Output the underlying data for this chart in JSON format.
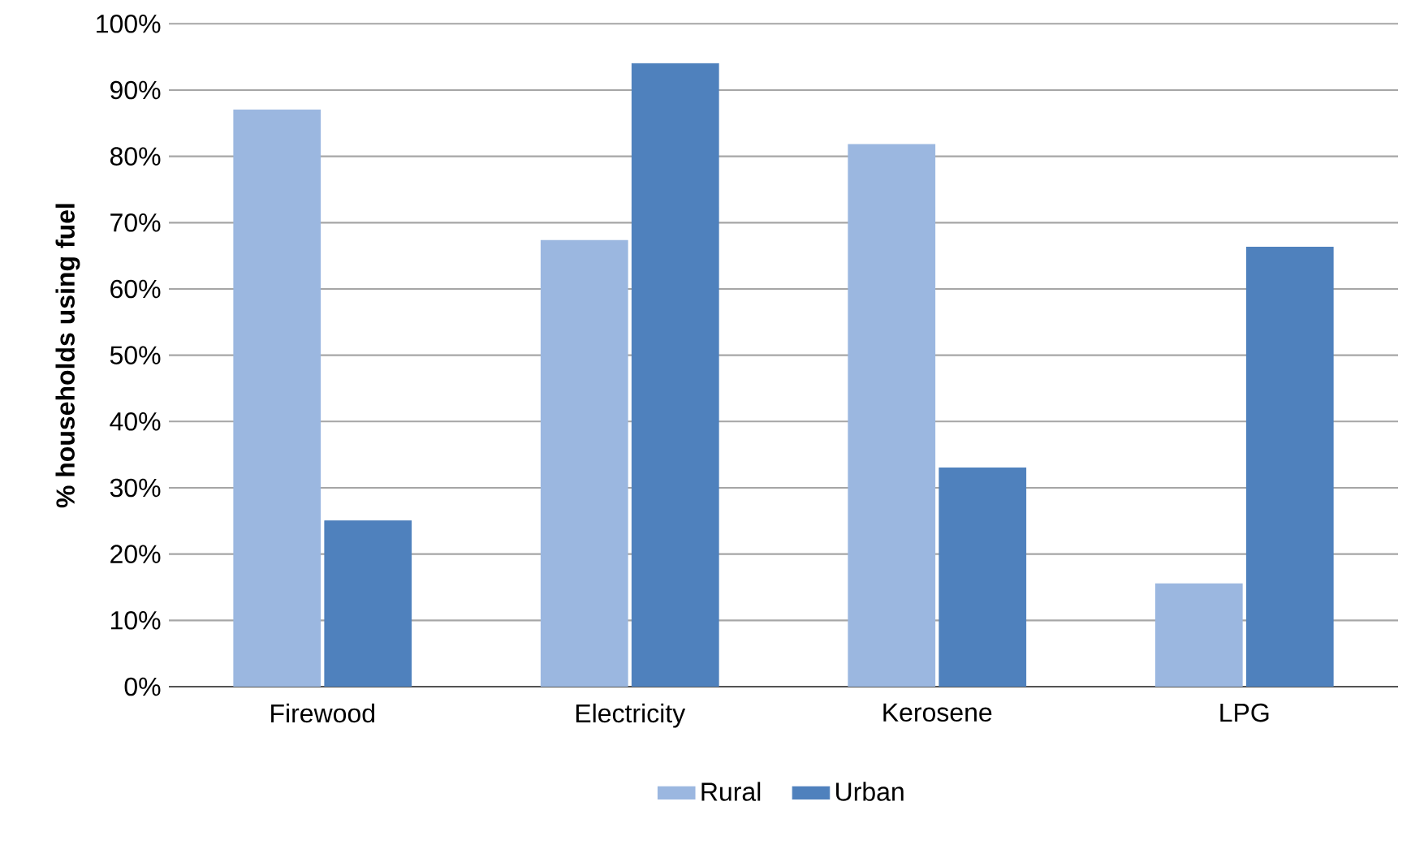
{
  "chart_data": {
    "type": "bar",
    "ylabel": "% households using fuel",
    "categories": [
      "Firewood",
      "Electricity",
      "Kerosene",
      "LPG"
    ],
    "series": [
      {
        "name": "Rural",
        "color": "#9bb7e0",
        "values": [
          87,
          67.3,
          81.8,
          15.5
        ]
      },
      {
        "name": "Urban",
        "color": "#4f81bd",
        "values": [
          25,
          94,
          33,
          66.3
        ]
      }
    ],
    "ylim": [
      0,
      100
    ],
    "yticks": [
      {
        "value": 0,
        "label": "0%"
      },
      {
        "value": 10,
        "label": "10%"
      },
      {
        "value": 20,
        "label": "20%"
      },
      {
        "value": 30,
        "label": "30%"
      },
      {
        "value": 40,
        "label": "40%"
      },
      {
        "value": 50,
        "label": "50%"
      },
      {
        "value": 60,
        "label": "60%"
      },
      {
        "value": 70,
        "label": "70%"
      },
      {
        "value": 80,
        "label": "80%"
      },
      {
        "value": 90,
        "label": "90%"
      },
      {
        "value": 100,
        "label": "100%"
      }
    ],
    "grid": "y",
    "legend": "bottom"
  }
}
